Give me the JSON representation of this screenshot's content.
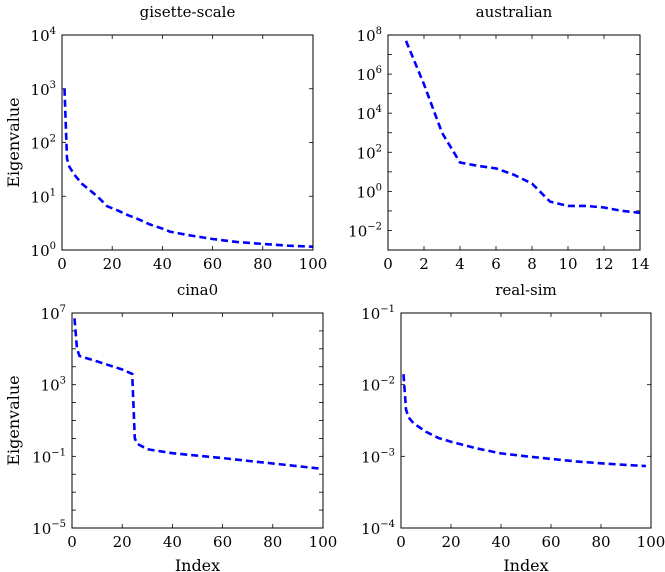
{
  "chart_data": [
    {
      "type": "line",
      "title": "gisette-scale",
      "xlabel": "",
      "ylabel": "Eigenvalue",
      "yscale": "log",
      "xlim": [
        0,
        100
      ],
      "ylim": [
        1,
        10000
      ],
      "x_ticks": [
        "0",
        "20",
        "40",
        "60",
        "80",
        "100"
      ],
      "y_ticks": [
        {
          "base": "10",
          "exp": "0"
        },
        {
          "base": "10",
          "exp": "1"
        },
        {
          "base": "10",
          "exp": "2"
        },
        {
          "base": "10",
          "exp": "3"
        },
        {
          "base": "10",
          "exp": "4"
        }
      ],
      "grid": false,
      "series": [
        {
          "color": "#0000ff",
          "style": "dashed",
          "x": [
            1,
            2,
            3,
            5,
            8,
            12,
            15,
            18,
            22,
            26,
            30,
            35,
            40,
            43,
            50,
            60,
            70,
            80,
            90,
            100
          ],
          "y": [
            1000,
            50,
            35,
            25,
            17,
            12,
            9,
            6.5,
            5.5,
            4.5,
            3.8,
            3.0,
            2.5,
            2.2,
            1.9,
            1.6,
            1.4,
            1.3,
            1.2,
            1.15
          ]
        }
      ]
    },
    {
      "type": "line",
      "title": "australian",
      "xlabel": "",
      "ylabel": "",
      "yscale": "log",
      "xlim": [
        0,
        14
      ],
      "ylim": [
        0.001,
        100000000
      ],
      "x_ticks": [
        "0",
        "2",
        "4",
        "6",
        "8",
        "10",
        "12",
        "14"
      ],
      "y_ticks": [
        {
          "base": "10",
          "exp": "−2"
        },
        {
          "base": "10",
          "exp": "0"
        },
        {
          "base": "10",
          "exp": "2"
        },
        {
          "base": "10",
          "exp": "4"
        },
        {
          "base": "10",
          "exp": "6"
        },
        {
          "base": "10",
          "exp": "8"
        }
      ],
      "grid": false,
      "series": [
        {
          "color": "#0000ff",
          "style": "dashed",
          "x": [
            1,
            2,
            3,
            4,
            5,
            6,
            7,
            8,
            9,
            10,
            11,
            12,
            13,
            14
          ],
          "y": [
            50000000,
            300000,
            1000,
            30,
            20,
            15,
            7,
            2.5,
            0.3,
            0.18,
            0.18,
            0.15,
            0.1,
            0.08
          ]
        }
      ]
    },
    {
      "type": "line",
      "title": "cina0",
      "xlabel": "Index",
      "ylabel": "Eigenvalue",
      "yscale": "log",
      "xlim": [
        0,
        100
      ],
      "ylim": [
        1e-05,
        10000000
      ],
      "x_ticks": [
        "0",
        "20",
        "40",
        "60",
        "80",
        "100"
      ],
      "y_ticks": [
        {
          "base": "10",
          "exp": "−5"
        },
        {
          "base": "10",
          "exp": "−1"
        },
        {
          "base": "10",
          "exp": "3"
        },
        {
          "base": "10",
          "exp": "7"
        }
      ],
      "grid": false,
      "series": [
        {
          "color": "#0000ff",
          "style": "dashed",
          "x": [
            1,
            2,
            3,
            10,
            20,
            24,
            25,
            26,
            30,
            40,
            60,
            80,
            100
          ],
          "y": [
            5000000,
            100000,
            40000,
            20000,
            7000,
            4000,
            1,
            0.5,
            0.25,
            0.15,
            0.08,
            0.04,
            0.02
          ]
        }
      ]
    },
    {
      "type": "line",
      "title": "real-sim",
      "xlabel": "Index",
      "ylabel": "",
      "yscale": "log",
      "xlim": [
        0,
        100
      ],
      "ylim": [
        0.0001,
        0.1
      ],
      "x_ticks": [
        "0",
        "20",
        "40",
        "60",
        "80",
        "100"
      ],
      "y_ticks": [
        {
          "base": "10",
          "exp": "−4"
        },
        {
          "base": "10",
          "exp": "−3"
        },
        {
          "base": "10",
          "exp": "−2"
        },
        {
          "base": "10",
          "exp": "−1"
        }
      ],
      "grid": false,
      "series": [
        {
          "color": "#0000ff",
          "style": "dashed",
          "x": [
            1,
            2,
            3,
            5,
            10,
            15,
            20,
            30,
            40,
            50,
            60,
            70,
            80,
            90,
            98
          ],
          "y": [
            0.014,
            0.0045,
            0.0035,
            0.0029,
            0.0022,
            0.0018,
            0.0016,
            0.0013,
            0.0011,
            0.001,
            0.00092,
            0.00085,
            0.0008,
            0.00076,
            0.00073
          ]
        }
      ]
    }
  ]
}
